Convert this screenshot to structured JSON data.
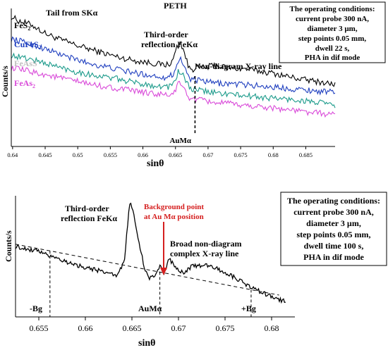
{
  "chart_data": [
    {
      "type": "line",
      "title": "PETH",
      "xlabel": "sinθ",
      "ylabel": "Counts/s",
      "xlim": [
        0.6398,
        0.6895
      ],
      "xticks": [
        0.64,
        0.645,
        0.65,
        0.655,
        0.66,
        0.665,
        0.67,
        0.675,
        0.68,
        0.685
      ],
      "xtick_labels": [
        "0.64",
        "0.645",
        "0.65",
        "0.655",
        "0.66",
        "0.665",
        "0.67",
        "0.675",
        "0.68",
        "0.685"
      ],
      "series": [
        {
          "name": "FeS2",
          "color": "#000000",
          "label_parts": [
            "FeS",
            "2"
          ],
          "label_color": "#000000",
          "points": [
            [
              0.6398,
              0.94
            ],
            [
              0.641,
              0.91
            ],
            [
              0.643,
              0.88
            ],
            [
              0.645,
              0.82
            ],
            [
              0.647,
              0.78
            ],
            [
              0.65,
              0.73
            ],
            [
              0.653,
              0.69
            ],
            [
              0.656,
              0.65
            ],
            [
              0.659,
              0.62
            ],
            [
              0.662,
              0.6
            ],
            [
              0.6635,
              0.59
            ],
            [
              0.6645,
              0.61
            ],
            [
              0.6652,
              0.72
            ],
            [
              0.6658,
              0.75
            ],
            [
              0.6664,
              0.68
            ],
            [
              0.667,
              0.57
            ],
            [
              0.6678,
              0.56
            ],
            [
              0.668,
              0.58
            ],
            [
              0.6695,
              0.57
            ],
            [
              0.671,
              0.59
            ],
            [
              0.673,
              0.57
            ],
            [
              0.676,
              0.56
            ],
            [
              0.68,
              0.53
            ],
            [
              0.684,
              0.49
            ],
            [
              0.6895,
              0.45
            ]
          ]
        },
        {
          "name": "CuFeS2",
          "color": "#1f3fbf",
          "label_parts": [
            "CuFeS",
            "2"
          ],
          "label_color": "#1f3fbf",
          "points": [
            [
              0.6398,
              0.78
            ],
            [
              0.643,
              0.74
            ],
            [
              0.646,
              0.69
            ],
            [
              0.649,
              0.64
            ],
            [
              0.652,
              0.6
            ],
            [
              0.656,
              0.56
            ],
            [
              0.659,
              0.53
            ],
            [
              0.662,
              0.51
            ],
            [
              0.6638,
              0.5
            ],
            [
              0.6648,
              0.53
            ],
            [
              0.6655,
              0.64
            ],
            [
              0.666,
              0.62
            ],
            [
              0.6666,
              0.55
            ],
            [
              0.6672,
              0.49
            ],
            [
              0.668,
              0.48
            ],
            [
              0.671,
              0.46
            ],
            [
              0.675,
              0.45
            ],
            [
              0.68,
              0.43
            ],
            [
              0.685,
              0.41
            ],
            [
              0.6895,
              0.39
            ]
          ]
        },
        {
          "name": "FeAsS",
          "color": "#1a9a8a",
          "label_parts": [
            "FeAsS",
            ""
          ],
          "label_color": "#bfbfbf",
          "points": [
            [
              0.6398,
              0.66
            ],
            [
              0.643,
              0.63
            ],
            [
              0.646,
              0.59
            ],
            [
              0.649,
              0.55
            ],
            [
              0.652,
              0.52
            ],
            [
              0.656,
              0.49
            ],
            [
              0.659,
              0.46
            ],
            [
              0.662,
              0.44
            ],
            [
              0.6638,
              0.43
            ],
            [
              0.6648,
              0.46
            ],
            [
              0.6655,
              0.55
            ],
            [
              0.666,
              0.53
            ],
            [
              0.6666,
              0.47
            ],
            [
              0.6672,
              0.42
            ],
            [
              0.668,
              0.41
            ],
            [
              0.671,
              0.39
            ],
            [
              0.675,
              0.37
            ],
            [
              0.68,
              0.35
            ],
            [
              0.685,
              0.33
            ],
            [
              0.6895,
              0.3
            ]
          ]
        },
        {
          "name": "FeAs2",
          "color": "#d94ad9",
          "label_parts": [
            "FeAs",
            "2"
          ],
          "label_color": "#d94ad9",
          "points": [
            [
              0.6398,
              0.57
            ],
            [
              0.643,
              0.54
            ],
            [
              0.646,
              0.51
            ],
            [
              0.649,
              0.48
            ],
            [
              0.652,
              0.45
            ],
            [
              0.656,
              0.42
            ],
            [
              0.659,
              0.4
            ],
            [
              0.662,
              0.38
            ],
            [
              0.6638,
              0.37
            ],
            [
              0.6648,
              0.39
            ],
            [
              0.6655,
              0.46
            ],
            [
              0.666,
              0.44
            ],
            [
              0.6666,
              0.39
            ],
            [
              0.6672,
              0.35
            ],
            [
              0.668,
              0.34
            ],
            [
              0.671,
              0.32
            ],
            [
              0.675,
              0.3
            ],
            [
              0.68,
              0.28
            ],
            [
              0.685,
              0.25
            ],
            [
              0.6895,
              0.23
            ]
          ]
        }
      ],
      "markers": [
        {
          "x": 0.668,
          "label": "AuMα"
        }
      ],
      "annotations": [
        "Tail from SKα",
        "Third-order",
        "reflection FeKα",
        "Non-diagram X-ray line"
      ],
      "conditions_box": [
        "The operating conditions:",
        "current probe 300 nA,",
        "diameter 3 µm,",
        "step points 0.05 mm,",
        "dwell 22 s,",
        "PHA in dif mode"
      ],
      "grid": false
    },
    {
      "type": "line",
      "title": "",
      "xlabel": "sinθ",
      "ylabel": "Counts/s",
      "xlim": [
        0.6525,
        0.6825
      ],
      "xticks": [
        0.655,
        0.66,
        0.665,
        0.67,
        0.675,
        0.68
      ],
      "xtick_labels": [
        "0.655",
        "0.66",
        "0.665",
        "0.67",
        "0.675",
        "0.68"
      ],
      "series": [
        {
          "name": "spectrum",
          "color": "#000000",
          "points": [
            [
              0.6525,
              0.58
            ],
            [
              0.6545,
              0.55
            ],
            [
              0.6565,
              0.5
            ],
            [
              0.6585,
              0.44
            ],
            [
              0.6605,
              0.4
            ],
            [
              0.6625,
              0.36
            ],
            [
              0.6635,
              0.34
            ],
            [
              0.6642,
              0.48
            ],
            [
              0.6648,
              0.97
            ],
            [
              0.6653,
              0.8
            ],
            [
              0.6658,
              0.6
            ],
            [
              0.6663,
              0.42
            ],
            [
              0.6668,
              0.32
            ],
            [
              0.6675,
              0.35
            ],
            [
              0.668,
              0.42
            ],
            [
              0.6685,
              0.36
            ],
            [
              0.669,
              0.48
            ],
            [
              0.6695,
              0.43
            ],
            [
              0.6705,
              0.36
            ],
            [
              0.6715,
              0.42
            ],
            [
              0.673,
              0.43
            ],
            [
              0.675,
              0.37
            ],
            [
              0.677,
              0.28
            ],
            [
              0.679,
              0.2
            ],
            [
              0.6808,
              0.14
            ],
            [
              0.6815,
              0.13
            ]
          ]
        }
      ],
      "background_line": {
        "x": [
          0.6525,
          0.6808
        ],
        "y": [
          0.6,
          0.18
        ]
      },
      "markers": [
        {
          "x": 0.6562,
          "label": "-Bg"
        },
        {
          "x": 0.668,
          "label": "AuMα"
        },
        {
          "x": 0.6778,
          "label": "+Bg"
        }
      ],
      "annotations": [
        "Third-order",
        "reflection FeKα",
        "Background point",
        "at Au Mα position",
        "Broad non-diagram",
        "complex X-ray line"
      ],
      "conditions_box": [
        "The operating conditions:",
        "current probe 300 nA,",
        "diameter 3 µm,",
        "step points 0.05 mm,",
        "dwell time 100 s,",
        "PHA in dif mode"
      ],
      "grid": false
    }
  ]
}
